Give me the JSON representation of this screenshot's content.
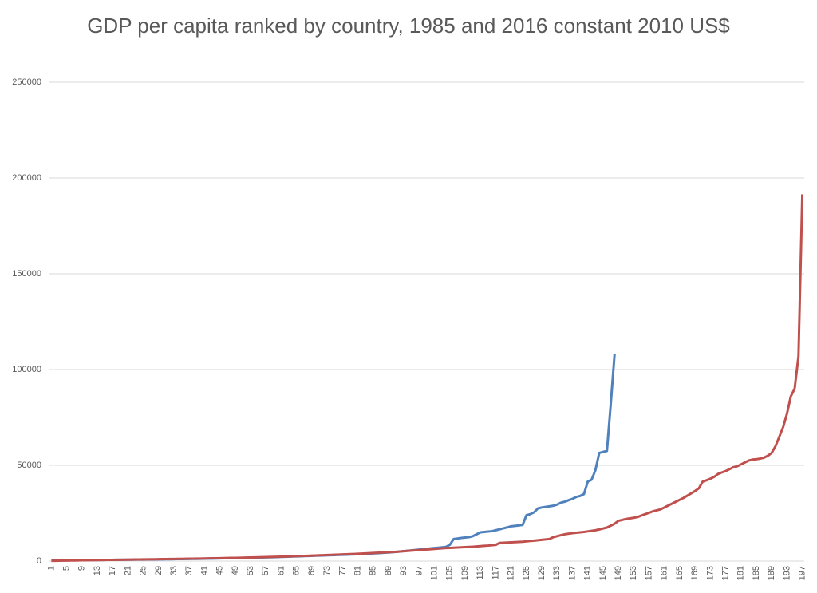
{
  "chart_data": {
    "type": "line",
    "title": "GDP per capita ranked by country, 1985 and 2016 constant 2010 US$",
    "categories": [
      "1",
      null,
      null,
      null,
      "5",
      null,
      null,
      null,
      "9",
      null,
      null,
      null,
      "13",
      null,
      null,
      null,
      "17",
      null,
      null,
      null,
      "21",
      null,
      null,
      null,
      "25",
      null,
      null,
      null,
      "29",
      null,
      null,
      null,
      "33",
      null,
      null,
      null,
      "37",
      null,
      null,
      null,
      "41",
      null,
      null,
      null,
      "45",
      null,
      null,
      null,
      "49",
      null,
      null,
      null,
      "53",
      null,
      null,
      null,
      "57",
      null,
      null,
      null,
      "61",
      null,
      null,
      null,
      "65",
      null,
      null,
      null,
      "69",
      null,
      null,
      null,
      "73",
      null,
      null,
      null,
      "77",
      null,
      null,
      null,
      "81",
      null,
      null,
      null,
      "85",
      null,
      null,
      null,
      "89",
      null,
      null,
      null,
      "93",
      null,
      null,
      null,
      "97",
      null,
      null,
      null,
      "101",
      null,
      null,
      null,
      "105",
      null,
      null,
      null,
      "109",
      null,
      null,
      null,
      "113",
      null,
      null,
      null,
      "117",
      null,
      null,
      null,
      "121",
      null,
      null,
      null,
      "125",
      null,
      null,
      null,
      "129",
      null,
      null,
      null,
      "133",
      null,
      null,
      null,
      "137",
      null,
      null,
      null,
      "141",
      null,
      null,
      null,
      "145",
      null,
      null,
      null,
      "149",
      null,
      null,
      null,
      "153",
      null,
      null,
      null,
      "157",
      null,
      null,
      null,
      "161",
      null,
      null,
      null,
      "165",
      null,
      null,
      null,
      "169",
      null,
      null,
      null,
      "173",
      null,
      null,
      null,
      "177",
      null,
      null,
      null,
      "181",
      null,
      null,
      null,
      "185",
      null,
      null,
      null,
      "189",
      null,
      null,
      null,
      "193",
      null,
      null,
      null,
      "197"
    ],
    "series": [
      {
        "color": "#4f81bd",
        "values": [
          200,
          250,
          300,
          330,
          360,
          390,
          420,
          450,
          480,
          500,
          520,
          540,
          560,
          580,
          600,
          620,
          640,
          660,
          680,
          700,
          720,
          740,
          760,
          780,
          800,
          820,
          840,
          860,
          880,
          900,
          930,
          960,
          990,
          1020,
          1050,
          1080,
          1110,
          1140,
          1170,
          1200,
          1240,
          1280,
          1320,
          1360,
          1400,
          1440,
          1480,
          1520,
          1560,
          1600,
          1650,
          1700,
          1750,
          1800,
          1850,
          1900,
          1950,
          2000,
          2050,
          2100,
          2170,
          2240,
          2310,
          2380,
          2450,
          2520,
          2590,
          2660,
          2730,
          2800,
          2870,
          2940,
          3010,
          3080,
          3150,
          3220,
          3290,
          3360,
          3430,
          3500,
          3600,
          3700,
          3800,
          3900,
          4000,
          4100,
          4200,
          4350,
          4500,
          4650,
          4800,
          5000,
          5200,
          5400,
          5600,
          5800,
          6000,
          6200,
          6400,
          6600,
          6800,
          7000,
          7200,
          7400,
          8500,
          11500,
          11800,
          12100,
          12300,
          12500,
          13000,
          14000,
          15000,
          15200,
          15400,
          15600,
          16100,
          16600,
          17100,
          17600,
          18200,
          18400,
          18600,
          18900,
          24000,
          24500,
          25500,
          27500,
          28000,
          28300,
          28600,
          28900,
          29500,
          30500,
          31000,
          31800,
          32500,
          33500,
          34000,
          35000,
          41500,
          42500,
          47500,
          56500,
          57000,
          57500,
          82000,
          108000,
          null,
          null,
          null,
          null,
          null,
          null,
          null,
          null,
          null,
          null,
          null,
          null,
          null,
          null,
          null,
          null,
          null,
          null,
          null,
          null,
          null,
          null,
          null,
          null,
          null,
          null,
          null,
          null,
          null,
          null,
          null,
          null,
          null,
          null,
          null,
          null,
          null,
          null,
          null,
          null,
          null,
          null,
          null,
          null,
          null,
          null,
          null,
          null,
          null
        ]
      },
      {
        "color": "#c0504d",
        "values": [
          150,
          180,
          210,
          240,
          270,
          300,
          330,
          360,
          390,
          420,
          450,
          480,
          510,
          540,
          570,
          600,
          630,
          660,
          690,
          720,
          750,
          780,
          810,
          840,
          870,
          900,
          930,
          960,
          990,
          1020,
          1050,
          1080,
          1110,
          1140,
          1170,
          1200,
          1230,
          1260,
          1290,
          1320,
          1360,
          1400,
          1440,
          1480,
          1520,
          1560,
          1600,
          1640,
          1680,
          1720,
          1770,
          1820,
          1870,
          1920,
          1970,
          2020,
          2070,
          2120,
          2170,
          2220,
          2290,
          2360,
          2430,
          2500,
          2570,
          2640,
          2710,
          2780,
          2850,
          2920,
          3000,
          3080,
          3160,
          3240,
          3320,
          3400,
          3480,
          3560,
          3640,
          3720,
          3820,
          3920,
          4020,
          4120,
          4220,
          4320,
          4420,
          4520,
          4620,
          4720,
          4850,
          5000,
          5150,
          5300,
          5450,
          5600,
          5750,
          5900,
          6050,
          6200,
          6350,
          6500,
          6650,
          6800,
          6900,
          7000,
          7100,
          7200,
          7300,
          7400,
          7500,
          7650,
          7800,
          7950,
          8100,
          8300,
          8500,
          9500,
          9600,
          9700,
          9800,
          9900,
          10000,
          10100,
          10300,
          10500,
          10700,
          10900,
          11100,
          11300,
          11500,
          12500,
          13000,
          13500,
          14000,
          14300,
          14600,
          14800,
          15000,
          15200,
          15500,
          15800,
          16100,
          16500,
          17000,
          17500,
          18500,
          19500,
          21000,
          21500,
          22000,
          22300,
          22600,
          23000,
          23800,
          24500,
          25200,
          26000,
          26500,
          27000,
          28000,
          29000,
          30000,
          31000,
          32000,
          33000,
          34200,
          35400,
          36600,
          38000,
          41500,
          42200,
          43000,
          44000,
          45500,
          46300,
          47000,
          48000,
          49000,
          49500,
          50500,
          51500,
          52500,
          53000,
          53200,
          53500,
          54000,
          55000,
          56500,
          60000,
          65000,
          70000,
          77000,
          86000,
          90000,
          107000,
          191500
        ]
      }
    ],
    "ylim": [
      0,
      250000
    ],
    "yticks": [
      0,
      50000,
      100000,
      150000,
      200000,
      250000
    ],
    "grid": true
  }
}
